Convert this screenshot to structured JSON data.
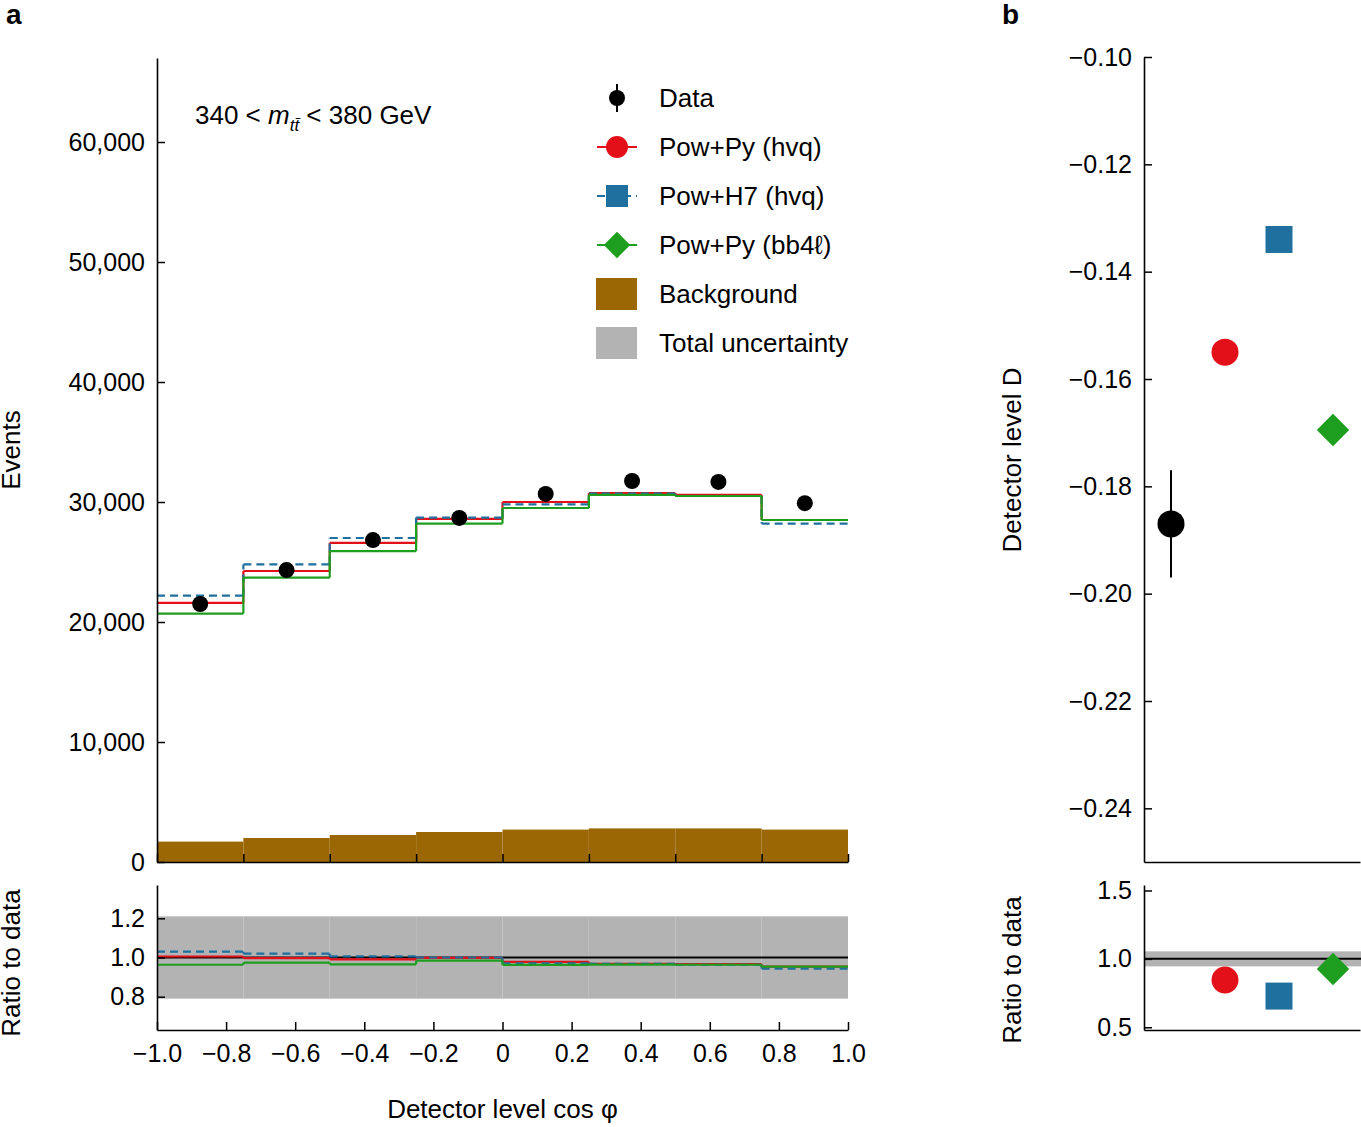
{
  "chart_data": [
    {
      "type": "histogram",
      "title": "a",
      "annotation": [
        "340 < ",
        "m",
        "tt̄",
        " < 380 GeV"
      ],
      "bins": [
        -1,
        -0.75,
        -0.5,
        -0.25,
        0,
        0.25,
        0.5,
        0.75,
        1
      ],
      "xlim": [
        -1,
        1
      ],
      "xticks": [
        -1,
        -0.75,
        -0.5,
        -0.25,
        0,
        0.25,
        0.5,
        0.75,
        1
      ],
      "tick_labels": "y",
      "ylim": [
        0,
        67000
      ],
      "yticks": [
        0,
        {
          "value": 10000,
          "label": "10,000"
        },
        {
          "value": 20000,
          "label": "20,000"
        },
        {
          "value": 30000,
          "label": "30,000"
        },
        {
          "value": 40000,
          "label": "40,000"
        },
        {
          "value": 50000,
          "label": "50,000"
        },
        {
          "value": 60000,
          "label": "60,000"
        }
      ],
      "y_label": "Events",
      "legend": "top-right",
      "series": [
        {
          "name": "Data",
          "type": "scatter",
          "color": "#000000",
          "marker": "circle",
          "values": [
            21500,
            24330,
            26830,
            28670,
            30670,
            31750,
            31670,
            29900
          ]
        },
        {
          "name": "Pow+Py (hvq)",
          "type": "step",
          "color": "#e3101a",
          "marker": "circle",
          "line_style": "solid",
          "values": [
            21600,
            24250,
            26600,
            28600,
            30000,
            30750,
            30600,
            28500
          ]
        },
        {
          "name": "Pow+H7 (hvq)",
          "type": "step",
          "color": "#1f6f9f",
          "marker": "square",
          "line_style": "dashed",
          "values": [
            22200,
            24800,
            27000,
            28700,
            29800,
            30700,
            30500,
            28200
          ]
        },
        {
          "name": "Pow+Py (bb4ℓ)",
          "type": "step",
          "color": "#1e9e1e",
          "marker": "diamond",
          "line_style": "solid",
          "values": [
            20700,
            23700,
            25900,
            28200,
            29500,
            30600,
            30500,
            28500
          ]
        },
        {
          "name": "Background",
          "type": "bar",
          "color": "#9b6604",
          "values": [
            1700,
            2000,
            2250,
            2500,
            2700,
            2800,
            2800,
            2700
          ]
        }
      ]
    },
    {
      "type": "histogram",
      "bins": [
        -1,
        -0.75,
        -0.5,
        -0.25,
        0,
        0.25,
        0.5,
        0.75,
        1
      ],
      "xlim": [
        -1,
        1
      ],
      "xticks": [
        {
          "value": -1,
          "label": "−1.0"
        },
        {
          "value": -0.8,
          "label": "−0.8"
        },
        {
          "value": -0.6,
          "label": "−0.6"
        },
        {
          "value": -0.4,
          "label": "−0.4"
        },
        {
          "value": -0.2,
          "label": "−0.2"
        },
        0,
        0.2,
        0.4,
        0.6,
        0.8,
        {
          "value": 1,
          "label": "1.0"
        }
      ],
      "x_label": "Detector level cos φ",
      "ylim": [
        0.63,
        1.37
      ],
      "yticks": [
        0.8,
        {
          "value": 1,
          "label": "1.0"
        },
        1.2
      ],
      "y_label": "Ratio to data",
      "reference": 1,
      "band": {
        "name": "Total uncertainty",
        "color": "#b3b3b3",
        "errors": [
          0.21,
          0.21,
          0.21,
          0.21,
          0.21,
          0.21,
          0.21,
          0.21
        ]
      },
      "series": [
        {
          "color": "#e3101a",
          "line_style": "solid",
          "values": [
            1.005,
            0.997,
            0.99,
            0.998,
            0.978,
            0.968,
            0.966,
            0.953
          ]
        },
        {
          "color": "#1f6f9f",
          "line_style": "dashed",
          "values": [
            1.03,
            1.02,
            1.006,
            1.0,
            0.97,
            0.967,
            0.963,
            0.943
          ]
        },
        {
          "color": "#1e9e1e",
          "line_style": "solid",
          "values": [
            0.963,
            0.974,
            0.965,
            0.984,
            0.962,
            0.964,
            0.963,
            0.953
          ]
        }
      ]
    },
    {
      "type": "scatter",
      "title": "b",
      "categories": [
        null,
        null,
        null,
        null
      ],
      "ylim": [
        -0.25,
        -0.1
      ],
      "yticks": [
        {
          "value": -0.24,
          "label": "−0.24"
        },
        {
          "value": -0.22,
          "label": "−0.22"
        },
        {
          "value": -0.2,
          "label": "−0.20"
        },
        {
          "value": -0.18,
          "label": "−0.18"
        },
        {
          "value": -0.16,
          "label": "−0.16"
        },
        {
          "value": -0.14,
          "label": "−0.14"
        },
        {
          "value": -0.12,
          "label": "−0.12"
        },
        {
          "value": -0.1,
          "label": "−0.10"
        }
      ],
      "y_label": "Detector level D",
      "series": [
        {
          "color": "#000000",
          "marker": "circle",
          "values": [
            -0.187,
            null,
            null,
            null
          ],
          "errors": [
            0.01,
            null,
            null,
            null
          ]
        },
        {
          "color": "#e3101a",
          "marker": "circle",
          "values": [
            null,
            -0.155,
            null,
            null
          ]
        },
        {
          "color": "#1f6f9f",
          "marker": "square",
          "values": [
            null,
            null,
            -0.134,
            null
          ]
        },
        {
          "color": "#1e9e1e",
          "marker": "diamond",
          "values": [
            null,
            null,
            null,
            -0.1695
          ]
        }
      ]
    },
    {
      "type": "scatter",
      "categories": [
        null,
        null,
        null,
        null
      ],
      "ylim": [
        0.48,
        1.54
      ],
      "yticks": [
        0.5,
        {
          "value": 1,
          "label": "1.0"
        },
        1.5
      ],
      "y_label": "Ratio to data",
      "reference": 1,
      "band": {
        "color": "#b3b3b3",
        "error": 0.055
      },
      "series": [
        {
          "color": "#e3101a",
          "marker": "circle",
          "values": [
            null,
            0.846,
            null,
            null
          ]
        },
        {
          "color": "#1f6f9f",
          "marker": "square",
          "values": [
            null,
            null,
            0.728,
            null
          ]
        },
        {
          "color": "#1e9e1e",
          "marker": "diamond",
          "values": [
            null,
            null,
            null,
            0.926
          ]
        }
      ]
    }
  ]
}
